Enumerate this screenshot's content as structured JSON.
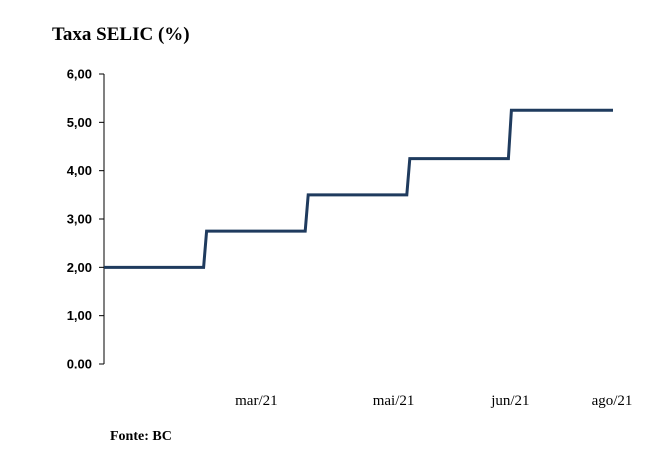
{
  "chart_data": {
    "type": "line",
    "title": "Taxa SELIC (%)",
    "source": "Fonte: BC",
    "series": [
      {
        "color": "#1f3b5e",
        "points": [
          {
            "x": 0,
            "y": 2.0
          },
          {
            "x": 1,
            "y": 2.75
          },
          {
            "x": 2,
            "y": 3.5
          },
          {
            "x": 3,
            "y": 4.25
          },
          {
            "x": 4,
            "y": 5.25
          },
          {
            "x": 5,
            "y": 5.25
          }
        ]
      }
    ],
    "x_ticks": [
      {
        "label": "mar/21",
        "x": 1.5
      },
      {
        "label": "mai/21",
        "x": 2.85
      },
      {
        "label": "jun/21",
        "x": 4.0
      },
      {
        "label": "ago/21",
        "x": 5.0
      }
    ],
    "y_ticks": [
      "0.00",
      "1,00",
      "2,00",
      "3,00",
      "4,00",
      "5,00",
      "6,00"
    ],
    "ylim": [
      0,
      6
    ],
    "xlim": [
      0,
      5
    ],
    "grid": false,
    "step": true,
    "axis_color": "#000000"
  }
}
